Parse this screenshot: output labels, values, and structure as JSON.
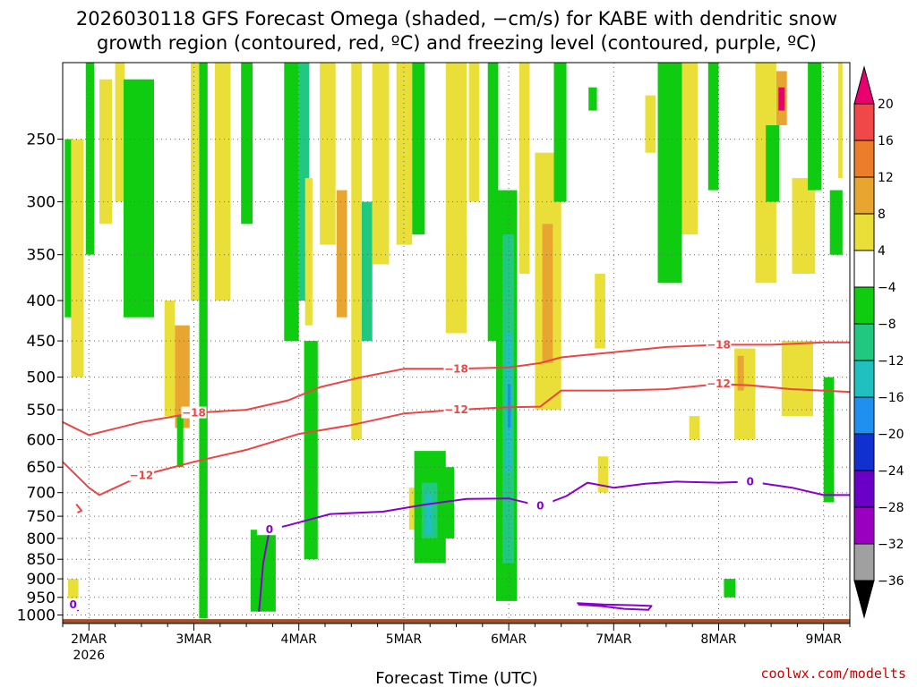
{
  "title_line1": "2026030118 GFS Forecast Omega (shaded, −cm/s) for KABE with dendritic snow",
  "title_line2": "growth region (contoured, red, ºC) and freezing level (contoured, purple, ºC)",
  "x_axis_label": "Forecast Time (UTC)",
  "credit": "coolwx.com/modelts",
  "chart_data": {
    "type": "heatmap",
    "y_axis": {
      "quantity": "pressure (hPa)",
      "direction": "decreasing upward",
      "range": [
        1025,
        200
      ],
      "ticks": [
        250,
        300,
        350,
        400,
        450,
        500,
        550,
        600,
        650,
        700,
        750,
        800,
        850,
        900,
        950,
        1000
      ],
      "grid": true
    },
    "x_axis": {
      "start": "2026-03-01 18 UTC",
      "end": "2026-03-09 18 UTC",
      "ticks": [
        {
          "label": "2MAR",
          "sublabel": "2026",
          "day": 2
        },
        {
          "label": "3MAR",
          "day": 3
        },
        {
          "label": "4MAR",
          "day": 4
        },
        {
          "label": "5MAR",
          "day": 5
        },
        {
          "label": "6MAR",
          "day": 6
        },
        {
          "label": "7MAR",
          "day": 7
        },
        {
          "label": "8MAR",
          "day": 8
        },
        {
          "label": "9MAR",
          "day": 9
        }
      ],
      "grid": true
    },
    "colorbar": {
      "ticks": [
        "20",
        "16",
        "12",
        "8",
        "4",
        "−4",
        "−8",
        "−12",
        "−16",
        "−20",
        "−24",
        "−28",
        "−32",
        "−36"
      ],
      "bands": [
        {
          "lo": 20,
          "hi": null,
          "color": "#e8006e"
        },
        {
          "lo": 16,
          "hi": 20,
          "color": "#f04848"
        },
        {
          "lo": 12,
          "hi": 16,
          "color": "#ec7d2a"
        },
        {
          "lo": 8,
          "hi": 12,
          "color": "#e8a630"
        },
        {
          "lo": 4,
          "hi": 8,
          "color": "#e9df38"
        },
        {
          "lo": -4,
          "hi": 4,
          "color": "#ffffff"
        },
        {
          "lo": -8,
          "hi": -4,
          "color": "#10cc10"
        },
        {
          "lo": -12,
          "hi": -8,
          "color": "#20c880"
        },
        {
          "lo": -16,
          "hi": -12,
          "color": "#20c0c0"
        },
        {
          "lo": -20,
          "hi": -16,
          "color": "#2090f0"
        },
        {
          "lo": -24,
          "hi": -20,
          "color": "#1030d0"
        },
        {
          "lo": -28,
          "hi": -24,
          "color": "#6a00c8"
        },
        {
          "lo": -32,
          "hi": -28,
          "color": "#9a00c0"
        },
        {
          "lo": -36,
          "hi": -32,
          "color": "#a0a0a0"
        },
        {
          "lo": null,
          "hi": -36,
          "color": "#000000"
        }
      ]
    },
    "omega_regions": [
      {
        "value": -6,
        "t": [
          1.77,
          1.84
        ],
        "p": [
          420,
          250
        ]
      },
      {
        "value": 6,
        "t": [
          1.83,
          1.95
        ],
        "p": [
          500,
          250
        ]
      },
      {
        "value": -6,
        "t": [
          1.97,
          2.05
        ],
        "p": [
          350,
          200
        ]
      },
      {
        "value": 6,
        "t": [
          2.1,
          2.22
        ],
        "p": [
          320,
          210
        ]
      },
      {
        "value": 6,
        "t": [
          2.25,
          2.34
        ],
        "p": [
          300,
          200
        ]
      },
      {
        "value": -10,
        "t": [
          2.4,
          2.55
        ],
        "p": [
          400,
          290
        ]
      },
      {
        "value": -6,
        "t": [
          2.33,
          2.62
        ],
        "p": [
          420,
          210
        ]
      },
      {
        "value": 6,
        "t": [
          2.72,
          2.82
        ],
        "p": [
          560,
          400
        ]
      },
      {
        "value": 10,
        "t": [
          2.82,
          2.96
        ],
        "p": [
          580,
          430
        ]
      },
      {
        "value": -6,
        "t": [
          2.84,
          2.9
        ],
        "p": [
          650,
          560
        ]
      },
      {
        "value": 6,
        "t": [
          2.97,
          3.05
        ],
        "p": [
          400,
          200
        ]
      },
      {
        "value": -6,
        "t": [
          3.05,
          3.13
        ],
        "p": [
          1010,
          200
        ]
      },
      {
        "value": 6,
        "t": [
          3.2,
          3.35
        ],
        "p": [
          400,
          200
        ]
      },
      {
        "value": -6,
        "t": [
          3.45,
          3.56
        ],
        "p": [
          320,
          200
        ]
      },
      {
        "value": -10,
        "t": [
          3.6,
          3.68
        ],
        "p": [
          960,
          860
        ]
      },
      {
        "value": -6,
        "t": [
          3.54,
          3.78
        ],
        "p": [
          990,
          780
        ]
      },
      {
        "value": -6,
        "t": [
          3.86,
          4.0
        ],
        "p": [
          450,
          200
        ]
      },
      {
        "value": -10,
        "t": [
          4.0,
          4.1
        ],
        "p": [
          400,
          200
        ]
      },
      {
        "value": 6,
        "t": [
          4.06,
          4.13
        ],
        "p": [
          430,
          280
        ]
      },
      {
        "value": -6,
        "t": [
          4.05,
          4.18
        ],
        "p": [
          850,
          450
        ]
      },
      {
        "value": 6,
        "t": [
          4.2,
          4.35
        ],
        "p": [
          340,
          200
        ]
      },
      {
        "value": 10,
        "t": [
          4.36,
          4.46
        ],
        "p": [
          420,
          290
        ]
      },
      {
        "value": 6,
        "t": [
          4.5,
          4.6
        ],
        "p": [
          600,
          200
        ]
      },
      {
        "value": -10,
        "t": [
          4.6,
          4.7
        ],
        "p": [
          450,
          300
        ]
      },
      {
        "value": 6,
        "t": [
          4.7,
          4.86
        ],
        "p": [
          360,
          200
        ]
      },
      {
        "value": 6,
        "t": [
          4.93,
          5.08
        ],
        "p": [
          340,
          200
        ]
      },
      {
        "value": -6,
        "t": [
          5.08,
          5.2
        ],
        "p": [
          330,
          200
        ]
      },
      {
        "value": 6,
        "t": [
          5.05,
          5.12
        ],
        "p": [
          780,
          690
        ]
      },
      {
        "value": -6,
        "t": [
          5.1,
          5.4
        ],
        "p": [
          860,
          620
        ]
      },
      {
        "value": -10,
        "t": [
          5.17,
          5.32
        ],
        "p": [
          800,
          680
        ]
      },
      {
        "value": -16,
        "t": [
          5.21,
          5.27
        ],
        "p": [
          790,
          700
        ]
      },
      {
        "value": -6,
        "t": [
          5.35,
          5.48
        ],
        "p": [
          800,
          650
        ]
      },
      {
        "value": 6,
        "t": [
          5.4,
          5.6
        ],
        "p": [
          440,
          200
        ]
      },
      {
        "value": 6,
        "t": [
          5.62,
          5.72
        ],
        "p": [
          300,
          200
        ]
      },
      {
        "value": -6,
        "t": [
          5.8,
          5.9
        ],
        "p": [
          450,
          200
        ]
      },
      {
        "value": -6,
        "t": [
          5.88,
          6.08
        ],
        "p": [
          960,
          290
        ]
      },
      {
        "value": -10,
        "t": [
          5.94,
          6.05
        ],
        "p": [
          860,
          330
        ]
      },
      {
        "value": -14,
        "t": [
          5.97,
          6.03
        ],
        "p": [
          660,
          440
        ]
      },
      {
        "value": -20,
        "t": [
          5.99,
          6.02
        ],
        "p": [
          580,
          510
        ]
      },
      {
        "value": 6,
        "t": [
          6.1,
          6.2
        ],
        "p": [
          370,
          200
        ]
      },
      {
        "value": 6,
        "t": [
          6.25,
          6.5
        ],
        "p": [
          550,
          260
        ]
      },
      {
        "value": 10,
        "t": [
          6.32,
          6.42
        ],
        "p": [
          480,
          320
        ]
      },
      {
        "value": -6,
        "t": [
          6.43,
          6.55
        ],
        "p": [
          300,
          200
        ]
      },
      {
        "value": 6,
        "t": [
          6.82,
          6.92
        ],
        "p": [
          460,
          370
        ]
      },
      {
        "value": 6,
        "t": [
          6.85,
          6.95
        ],
        "p": [
          700,
          630
        ]
      },
      {
        "value": -6,
        "t": [
          6.76,
          6.84
        ],
        "p": [
          230,
          215
        ]
      },
      {
        "value": 6,
        "t": [
          7.3,
          7.4
        ],
        "p": [
          260,
          220
        ]
      },
      {
        "value": -6,
        "t": [
          7.42,
          7.65
        ],
        "p": [
          380,
          200
        ]
      },
      {
        "value": 6,
        "t": [
          7.65,
          7.8
        ],
        "p": [
          330,
          200
        ]
      },
      {
        "value": -6,
        "t": [
          7.9,
          8.0
        ],
        "p": [
          290,
          200
        ]
      },
      {
        "value": 6,
        "t": [
          8.15,
          8.35
        ],
        "p": [
          600,
          460
        ]
      },
      {
        "value": 10,
        "t": [
          8.18,
          8.24
        ],
        "p": [
          520,
          470
        ]
      },
      {
        "value": 6,
        "t": [
          8.35,
          8.55
        ],
        "p": [
          380,
          200
        ]
      },
      {
        "value": -6,
        "t": [
          8.45,
          8.58
        ],
        "p": [
          300,
          240
        ]
      },
      {
        "value": 10,
        "t": [
          8.55,
          8.65
        ],
        "p": [
          240,
          205
        ]
      },
      {
        "value": 20,
        "t": [
          8.57,
          8.63
        ],
        "p": [
          230,
          215
        ]
      },
      {
        "value": 6,
        "t": [
          8.6,
          8.9
        ],
        "p": [
          560,
          450
        ]
      },
      {
        "value": 6,
        "t": [
          8.7,
          8.92
        ],
        "p": [
          370,
          280
        ]
      },
      {
        "value": -6,
        "t": [
          8.85,
          8.98
        ],
        "p": [
          290,
          200
        ]
      },
      {
        "value": -6,
        "t": [
          9.0,
          9.1
        ],
        "p": [
          720,
          500
        ]
      },
      {
        "value": -6,
        "t": [
          9.06,
          9.18
        ],
        "p": [
          350,
          290
        ]
      },
      {
        "value": 6,
        "t": [
          9.14,
          9.18
        ],
        "p": [
          280,
          200
        ]
      },
      {
        "value": -6,
        "t": [
          8.05,
          8.16
        ],
        "p": [
          950,
          900
        ]
      },
      {
        "value": 6,
        "t": [
          7.72,
          7.82
        ],
        "p": [
          600,
          560
        ]
      },
      {
        "value": 6,
        "t": [
          1.8,
          1.9
        ],
        "p": [
          960,
          900
        ]
      }
    ],
    "isotherms": [
      {
        "label": "−18",
        "color": "#ee4444",
        "points": [
          [
            1.75,
            570
          ],
          [
            2.0,
            592
          ],
          [
            2.5,
            570
          ],
          [
            3.0,
            555
          ],
          [
            3.5,
            550
          ],
          [
            3.9,
            535
          ],
          [
            4.2,
            515
          ],
          [
            4.6,
            500
          ],
          [
            5.0,
            488
          ],
          [
            5.5,
            488
          ],
          [
            6.0,
            486
          ],
          [
            6.3,
            480
          ],
          [
            6.5,
            472
          ],
          [
            7.0,
            465
          ],
          [
            7.5,
            458
          ],
          [
            8.0,
            455
          ],
          [
            8.5,
            455
          ],
          [
            9.0,
            452
          ],
          [
            9.25,
            452
          ]
        ]
      },
      {
        "label": "−12",
        "color": "#ee4444",
        "points": [
          [
            1.75,
            640
          ],
          [
            2.0,
            690
          ],
          [
            2.1,
            705
          ],
          [
            2.5,
            666
          ],
          [
            3.0,
            640
          ],
          [
            3.5,
            618
          ],
          [
            4.0,
            590
          ],
          [
            4.5,
            575
          ],
          [
            5.0,
            556
          ],
          [
            5.5,
            550
          ],
          [
            6.0,
            546
          ],
          [
            6.3,
            545
          ],
          [
            6.5,
            520
          ],
          [
            7.0,
            520
          ],
          [
            7.5,
            518
          ],
          [
            8.0,
            510
          ],
          [
            8.3,
            512
          ],
          [
            8.7,
            518
          ],
          [
            9.25,
            522
          ]
        ]
      },
      {
        "label": "0",
        "color": "#8800cc",
        "points": [
          [
            3.62,
            990
          ],
          [
            3.63,
            960
          ],
          [
            3.66,
            860
          ],
          [
            3.72,
            780
          ],
          [
            3.9,
            770
          ],
          [
            4.3,
            745
          ],
          [
            4.8,
            740
          ],
          [
            5.2,
            725
          ],
          [
            5.6,
            713
          ],
          [
            6.0,
            712
          ],
          [
            6.3,
            728
          ],
          [
            6.55,
            707
          ],
          [
            6.75,
            680
          ],
          [
            7.0,
            690
          ],
          [
            7.3,
            682
          ],
          [
            7.6,
            678
          ],
          [
            8.0,
            680
          ],
          [
            8.3,
            678
          ],
          [
            8.7,
            690
          ],
          [
            9.0,
            705
          ],
          [
            9.25,
            705
          ]
        ]
      },
      {
        "label": "0",
        "color": "#8800cc",
        "points": [
          [
            1.75,
            972
          ],
          [
            1.85,
            970
          ],
          [
            1.9,
            988
          ]
        ]
      },
      {
        "label": "",
        "color": "#ee4444",
        "points": [
          [
            1.88,
            724
          ],
          [
            1.93,
            738
          ],
          [
            1.89,
            742
          ]
        ]
      },
      {
        "label": "",
        "color": "#8800cc",
        "points": [
          [
            6.65,
            966
          ],
          [
            6.9,
            970
          ],
          [
            7.2,
            972
          ],
          [
            7.36,
            974
          ],
          [
            7.33,
            985
          ],
          [
            7.1,
            982
          ],
          [
            6.9,
            975
          ],
          [
            6.66,
            970
          ]
        ]
      }
    ]
  }
}
